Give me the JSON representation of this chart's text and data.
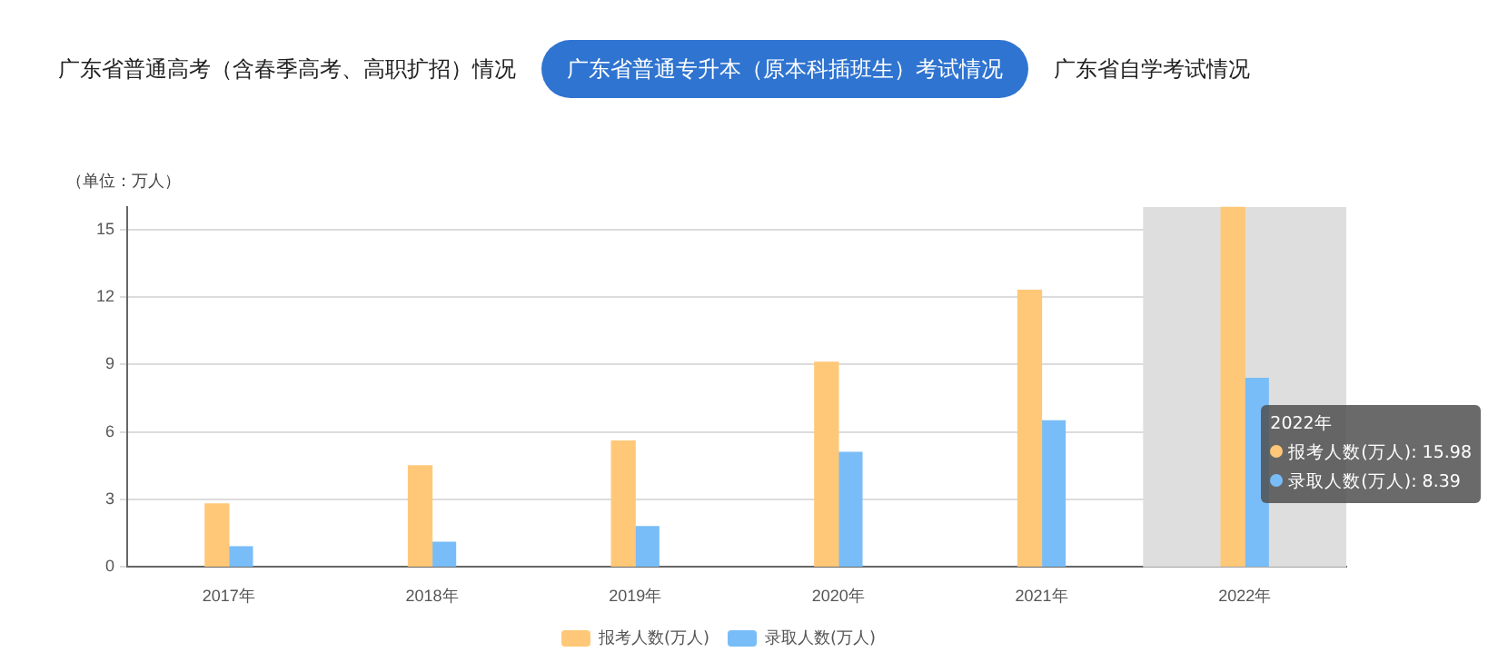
{
  "chart_data": {
    "type": "bar",
    "title": "广东省普通专升本（原本科插班生）考试情况",
    "ylabel": "（单位：万人）",
    "categories": [
      "2017年",
      "2018年",
      "2019年",
      "2020年",
      "2021年",
      "2022年"
    ],
    "series": [
      {
        "name": "报考人数(万人)",
        "color": "#ffc878",
        "values": [
          2.8,
          4.5,
          5.6,
          9.1,
          12.3,
          15.98
        ]
      },
      {
        "name": "录取人数(万人)",
        "color": "#78bdf7",
        "values": [
          0.9,
          1.1,
          1.8,
          5.1,
          6.5,
          8.39
        ]
      }
    ],
    "ylim": [
      0,
      16
    ],
    "yticks": [
      0,
      3,
      6,
      9,
      12,
      15
    ],
    "grid": "y",
    "legend": "bottom",
    "bands": [
      {
        "axis": "x",
        "from": "2022年",
        "to": "2022年",
        "color": "#dedede"
      }
    ],
    "annotations": [
      "广东省普通高考（含春季高考、高职扩招）情况",
      "广东省自学考试情况",
      "2022年",
      "报考人数(万人): 15.98",
      "录取人数(万人): 8.39"
    ]
  }
}
